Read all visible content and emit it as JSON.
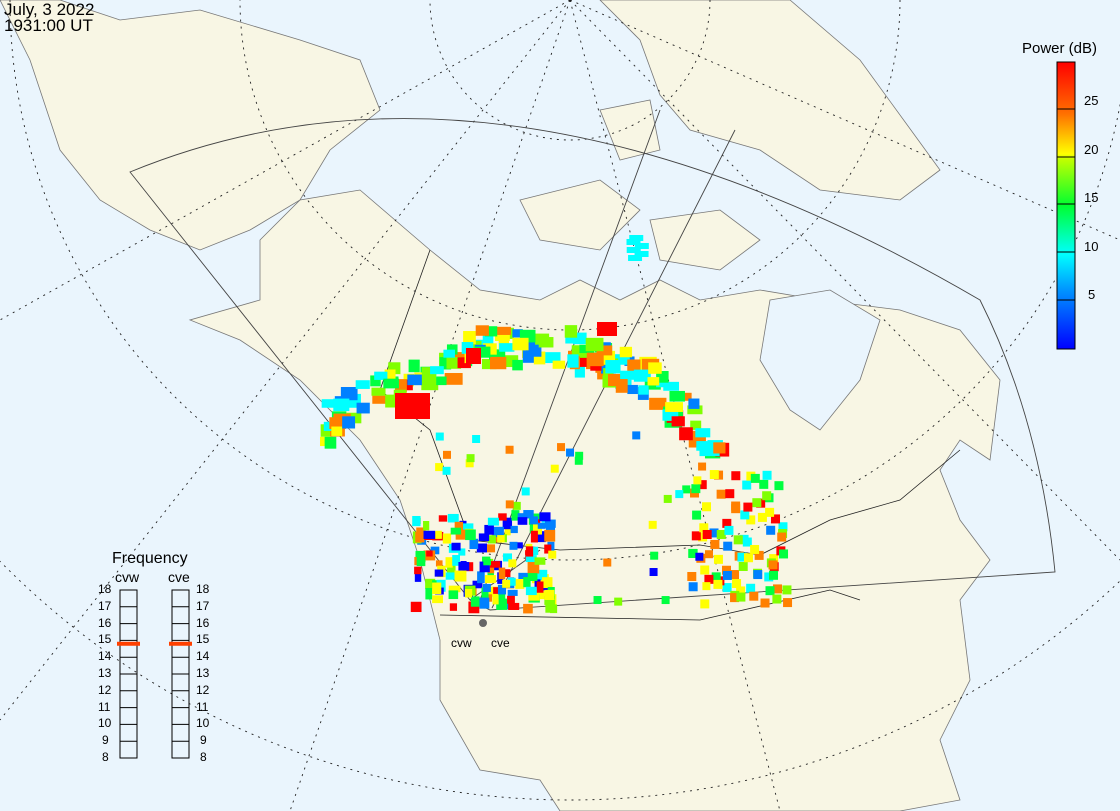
{
  "header": {
    "date": "July, 3 2022",
    "time": "1931:00 UT"
  },
  "colorbar": {
    "title": "Power (dB)",
    "ticks": [
      "25",
      "20",
      "15",
      "10",
      "5"
    ],
    "range": [
      0,
      30
    ],
    "colors": [
      "#0000ff",
      "#0080ff",
      "#00ffff",
      "#00ff40",
      "#80ff00",
      "#ffff00",
      "#ff8000",
      "#ff0000"
    ]
  },
  "frequency": {
    "title": "Frequency",
    "radars": [
      {
        "name": "cvw",
        "value_mhz": 14.8
      },
      {
        "name": "cve",
        "value_mhz": 14.8
      }
    ],
    "scale": [
      "18",
      "17",
      "16",
      "15",
      "14",
      "13",
      "12",
      "11",
      "10",
      "9",
      "8"
    ],
    "marker_color": "#ff4000"
  },
  "sites": {
    "cvw": "cvw",
    "cve": "cve"
  },
  "colors": {
    "ocean": "#eaf5fd",
    "land": "#f8f6e4"
  }
}
